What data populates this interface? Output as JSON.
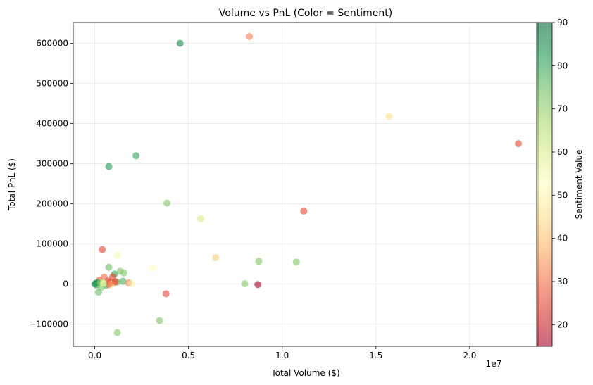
{
  "chart_data": {
    "type": "scatter",
    "title": "Volume vs PnL (Color = Sentiment)",
    "xlabel": "Total Volume ($)",
    "ylabel": "Total PnL ($)",
    "x_offset_label": "1e7",
    "x_scale_factor": 10000000,
    "xlim": [
      -1150000,
      23650000
    ],
    "ylim": [
      -155000,
      652000
    ],
    "xticks": [
      0,
      5000000,
      10000000,
      15000000,
      20000000
    ],
    "xtick_labels": [
      "0.0",
      "0.5",
      "1.0",
      "1.5",
      "2.0"
    ],
    "yticks": [
      -100000,
      0,
      100000,
      200000,
      300000,
      400000,
      500000,
      600000
    ],
    "ytick_labels": [
      "−100000",
      "0",
      "100000",
      "200000",
      "300000",
      "400000",
      "500000",
      "600000"
    ],
    "grid": true,
    "colorbar": {
      "label": "Sentiment Value",
      "range": [
        15,
        90
      ],
      "ticks": [
        20,
        30,
        40,
        50,
        60,
        70,
        80,
        90
      ],
      "tick_labels": [
        "20",
        "30",
        "40",
        "50",
        "60",
        "70",
        "80",
        "90"
      ],
      "colormap_stops": [
        "#a50026",
        "#d73027",
        "#f46d43",
        "#fdae61",
        "#fee08b",
        "#ffffbf",
        "#d9ef8b",
        "#a6d96a",
        "#66bd63",
        "#1a9850",
        "#006837"
      ]
    },
    "points": [
      {
        "x": 4550000,
        "y": 600000,
        "sentiment": 85
      },
      {
        "x": 8250000,
        "y": 617000,
        "sentiment": 32
      },
      {
        "x": 15700000,
        "y": 418000,
        "sentiment": 45
      },
      {
        "x": 22600000,
        "y": 350000,
        "sentiment": 25
      },
      {
        "x": 2200000,
        "y": 320000,
        "sentiment": 80
      },
      {
        "x": 750000,
        "y": 293000,
        "sentiment": 82
      },
      {
        "x": 3850000,
        "y": 202000,
        "sentiment": 72
      },
      {
        "x": 11150000,
        "y": 182000,
        "sentiment": 25
      },
      {
        "x": 5650000,
        "y": 163000,
        "sentiment": 60
      },
      {
        "x": 400000,
        "y": 86000,
        "sentiment": 25
      },
      {
        "x": 1200000,
        "y": 72000,
        "sentiment": 55
      },
      {
        "x": 6450000,
        "y": 66000,
        "sentiment": 42
      },
      {
        "x": 8750000,
        "y": 57000,
        "sentiment": 72
      },
      {
        "x": 10750000,
        "y": 55000,
        "sentiment": 72
      },
      {
        "x": 750000,
        "y": 42000,
        "sentiment": 75
      },
      {
        "x": 3100000,
        "y": 40000,
        "sentiment": 52
      },
      {
        "x": 1350000,
        "y": 32000,
        "sentiment": 72
      },
      {
        "x": 1550000,
        "y": 28000,
        "sentiment": 72
      },
      {
        "x": 1050000,
        "y": 25000,
        "sentiment": 80
      },
      {
        "x": 950000,
        "y": 18000,
        "sentiment": 25
      },
      {
        "x": 500000,
        "y": 17000,
        "sentiment": 30
      },
      {
        "x": 250000,
        "y": 10000,
        "sentiment": 28
      },
      {
        "x": 700000,
        "y": 8000,
        "sentiment": 25
      },
      {
        "x": 1500000,
        "y": 7000,
        "sentiment": 78
      },
      {
        "x": 1200000,
        "y": 5000,
        "sentiment": 75
      },
      {
        "x": 800000,
        "y": 4000,
        "sentiment": 25
      },
      {
        "x": 1000000,
        "y": 3000,
        "sentiment": 28
      },
      {
        "x": 1800000,
        "y": 3000,
        "sentiment": 32
      },
      {
        "x": 1950000,
        "y": 1000,
        "sentiment": 48
      },
      {
        "x": 400000,
        "y": 5000,
        "sentiment": 65
      },
      {
        "x": 150000,
        "y": 4000,
        "sentiment": 85
      },
      {
        "x": 50000,
        "y": 2000,
        "sentiment": 82
      },
      {
        "x": 0,
        "y": 0,
        "sentiment": 85
      },
      {
        "x": 100000,
        "y": -2000,
        "sentiment": 80
      },
      {
        "x": 300000,
        "y": 3000,
        "sentiment": 70
      },
      {
        "x": 600000,
        "y": -3000,
        "sentiment": 78
      },
      {
        "x": 900000,
        "y": 0,
        "sentiment": 45
      },
      {
        "x": 750000,
        "y": -1000,
        "sentiment": 30
      },
      {
        "x": 350000,
        "y": -8000,
        "sentiment": 72
      },
      {
        "x": 450000,
        "y": 2000,
        "sentiment": 55
      },
      {
        "x": 1100000,
        "y": 6000,
        "sentiment": 25
      },
      {
        "x": 8000000,
        "y": 1000,
        "sentiment": 72
      },
      {
        "x": 8700000,
        "y": -1000,
        "sentiment": 15
      },
      {
        "x": 3800000,
        "y": -24000,
        "sentiment": 25
      },
      {
        "x": 200000,
        "y": -20000,
        "sentiment": 75
      },
      {
        "x": 3450000,
        "y": -91000,
        "sentiment": 72
      },
      {
        "x": 1200000,
        "y": -121000,
        "sentiment": 72
      }
    ]
  }
}
